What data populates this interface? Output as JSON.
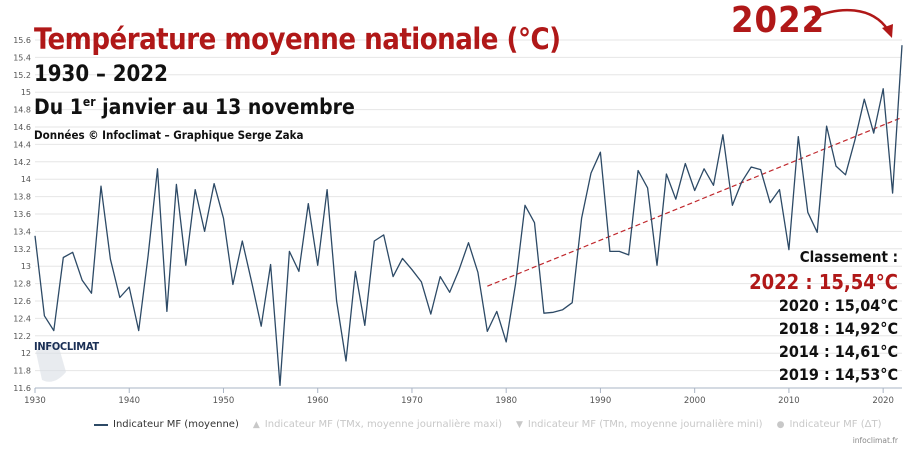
{
  "header": {
    "title": "Température moyenne nationale (°C)",
    "subtitle_years": "1930 – 2022",
    "period_prefix": "Du 1",
    "period_sup": "er",
    "period_suffix": " janvier au 13 novembre",
    "credit": "Données © Infoclimat – Graphique Serge Zaka",
    "highlight_year": "2022"
  },
  "ranking": {
    "title": "Classement :",
    "items": [
      {
        "label": "2022 : 15,54°C"
      },
      {
        "label": "2020 : 15,04°C"
      },
      {
        "label": "2018 : 14,92°C"
      },
      {
        "label": "2014 : 14,61°C"
      },
      {
        "label": "2019 : 14,53°C"
      }
    ]
  },
  "logo_text": "INFOCLIMAT",
  "watermark": "infoclimat.fr",
  "legend": [
    {
      "label": "Indicateur MF (moyenne)",
      "mark": "line"
    },
    {
      "label": "Indicateur MF (TMx, moyenne journalière maxi)",
      "mark": "▲"
    },
    {
      "label": "Indicateur MF (TMn, moyenne journalière mini)",
      "mark": "▼"
    },
    {
      "label": "Indicateur MF (ΔT)",
      "mark": "●"
    }
  ],
  "colors": {
    "series": "#2d4a66",
    "trend": "#c0282d",
    "accent": "#b01818",
    "grid": "#e6e6e6"
  },
  "chart_data": {
    "type": "line",
    "title": "Température moyenne nationale (°C)",
    "xlim": [
      1930,
      2022
    ],
    "ylim": [
      11.6,
      15.6
    ],
    "x_ticks": [
      1930,
      1940,
      1950,
      1960,
      1970,
      1980,
      1990,
      2000,
      2010,
      2020
    ],
    "y_ticks": [
      11.6,
      11.8,
      12,
      12.2,
      12.4,
      12.6,
      12.8,
      13,
      13.2,
      13.4,
      13.6,
      13.8,
      14,
      14.2,
      14.4,
      14.6,
      14.8,
      15,
      15.2,
      15.4,
      15.6
    ],
    "grid": true,
    "legend_position": "bottom",
    "series": [
      {
        "name": "Indicateur MF (moyenne)",
        "x": [
          1930,
          1931,
          1932,
          1933,
          1934,
          1935,
          1936,
          1937,
          1938,
          1939,
          1940,
          1941,
          1942,
          1943,
          1944,
          1945,
          1946,
          1947,
          1948,
          1949,
          1950,
          1951,
          1952,
          1953,
          1954,
          1955,
          1956,
          1957,
          1958,
          1959,
          1960,
          1961,
          1962,
          1963,
          1964,
          1965,
          1966,
          1967,
          1968,
          1969,
          1970,
          1971,
          1972,
          1973,
          1974,
          1975,
          1976,
          1977,
          1978,
          1979,
          1980,
          1981,
          1982,
          1983,
          1984,
          1985,
          1986,
          1987,
          1988,
          1989,
          1990,
          1991,
          1992,
          1993,
          1994,
          1995,
          1996,
          1997,
          1998,
          1999,
          2000,
          2001,
          2002,
          2003,
          2004,
          2005,
          2006,
          2007,
          2008,
          2009,
          2010,
          2011,
          2012,
          2013,
          2014,
          2015,
          2016,
          2017,
          2018,
          2019,
          2020,
          2021,
          2022
        ],
        "values": [
          13.35,
          12.43,
          12.26,
          13.1,
          13.16,
          12.84,
          12.69,
          13.92,
          13.08,
          12.64,
          12.76,
          12.26,
          13.12,
          14.12,
          12.48,
          13.94,
          13.01,
          13.88,
          13.4,
          13.95,
          13.55,
          12.79,
          13.29,
          12.81,
          12.31,
          13.02,
          11.63,
          13.17,
          12.94,
          13.72,
          13.01,
          13.88,
          12.6,
          11.91,
          12.94,
          12.32,
          13.29,
          13.36,
          12.88,
          13.09,
          12.96,
          12.82,
          12.45,
          12.88,
          12.7,
          12.96,
          13.27,
          12.93,
          12.25,
          12.48,
          12.13,
          12.8,
          13.7,
          13.5,
          12.46,
          12.47,
          12.5,
          12.58,
          13.55,
          14.07,
          14.31,
          13.17,
          13.17,
          13.13,
          14.1,
          13.9,
          13.01,
          14.06,
          13.77,
          14.18,
          13.87,
          14.12,
          13.93,
          14.51,
          13.7,
          13.97,
          14.14,
          14.11,
          13.73,
          13.88,
          13.19,
          14.49,
          13.62,
          13.39,
          14.61,
          14.15,
          14.05,
          14.45,
          14.92,
          14.53,
          15.04,
          13.84,
          15.54
        ]
      }
    ],
    "trend": {
      "x": [
        1978,
        2022
      ],
      "values": [
        12.77,
        14.71
      ]
    }
  }
}
